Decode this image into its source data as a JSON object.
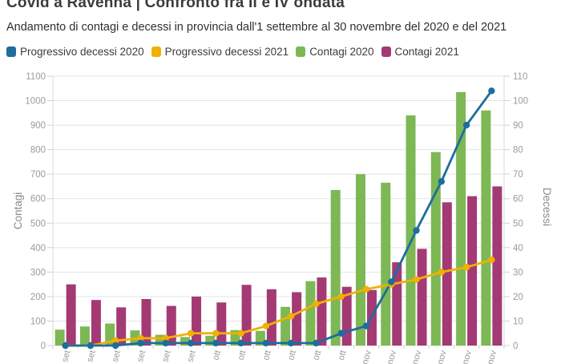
{
  "header": {
    "title": "Covid a Ravenna | Confronto fra II e IV ondata",
    "subtitle": "Andamento di contagi e decessi in provincia dall'1 settembre al 30 novembre del 2020 e del 2021"
  },
  "legend": {
    "items": [
      {
        "label": "Progressivo decessi 2020",
        "color": "#1d6d9d"
      },
      {
        "label": "Progressivo decessi 2021",
        "color": "#f0b004"
      },
      {
        "label": "Contagi 2020",
        "color": "#7db854"
      },
      {
        "label": "Contagi 2021",
        "color": "#a33a74"
      }
    ]
  },
  "chart_data": {
    "type": "bar",
    "subtype": "grouped bars + two cumulative lines (dual axis)",
    "categories": [
      "set",
      "set",
      "set",
      "set",
      "set",
      "set",
      "ott",
      "ott",
      "ott",
      "ott",
      "ott",
      "ott",
      "nov",
      "nov",
      "nov",
      "nov",
      "nov",
      "nov"
    ],
    "series": [
      {
        "name": "Contagi 2020",
        "type": "bar",
        "axis": "left",
        "color": "#7db854",
        "values": [
          65,
          78,
          90,
          62,
          44,
          35,
          40,
          63,
          60,
          158,
          263,
          635,
          700,
          665,
          940,
          790,
          1035,
          960
        ]
      },
      {
        "name": "Contagi 2021",
        "type": "bar",
        "axis": "left",
        "color": "#a33a74",
        "values": [
          250,
          186,
          156,
          190,
          162,
          200,
          176,
          248,
          230,
          218,
          278,
          240,
          227,
          340,
          395,
          585,
          610,
          650
        ]
      },
      {
        "name": "Progressivo decessi 2020",
        "type": "line",
        "axis": "right",
        "color": "#1d6d9d",
        "values": [
          0,
          0,
          0,
          1,
          1,
          1,
          1,
          1,
          1,
          1,
          1,
          5,
          8,
          26,
          47,
          67,
          90,
          104
        ]
      },
      {
        "name": "Progressivo decessi 2021",
        "type": "line",
        "axis": "right",
        "color": "#f0b004",
        "values": [
          0,
          0,
          2,
          3,
          3,
          5,
          5,
          5,
          8,
          12,
          17,
          20,
          23,
          25,
          27,
          30,
          32,
          35
        ]
      }
    ],
    "left_axis": {
      "label": "Contagi",
      "min": 0,
      "max": 1100,
      "ticks": [
        "0",
        "100",
        "200",
        "300",
        "400",
        "500",
        "600",
        "700",
        "800",
        "900",
        "1000",
        "1100"
      ]
    },
    "right_axis": {
      "label": "Decessi",
      "min": 0,
      "max": 110,
      "ticks": [
        "0",
        "10",
        "20",
        "30",
        "40",
        "50",
        "60",
        "70",
        "80",
        "90",
        "100",
        "110"
      ]
    },
    "grid": "horizontal gridlines on, legend top-left"
  },
  "colors": {
    "grid": "#e4e4e4",
    "axis_tick": "#cfcfcf",
    "tick_text": "#9b9b9b",
    "axis_title_text": "#8a8a8a"
  }
}
